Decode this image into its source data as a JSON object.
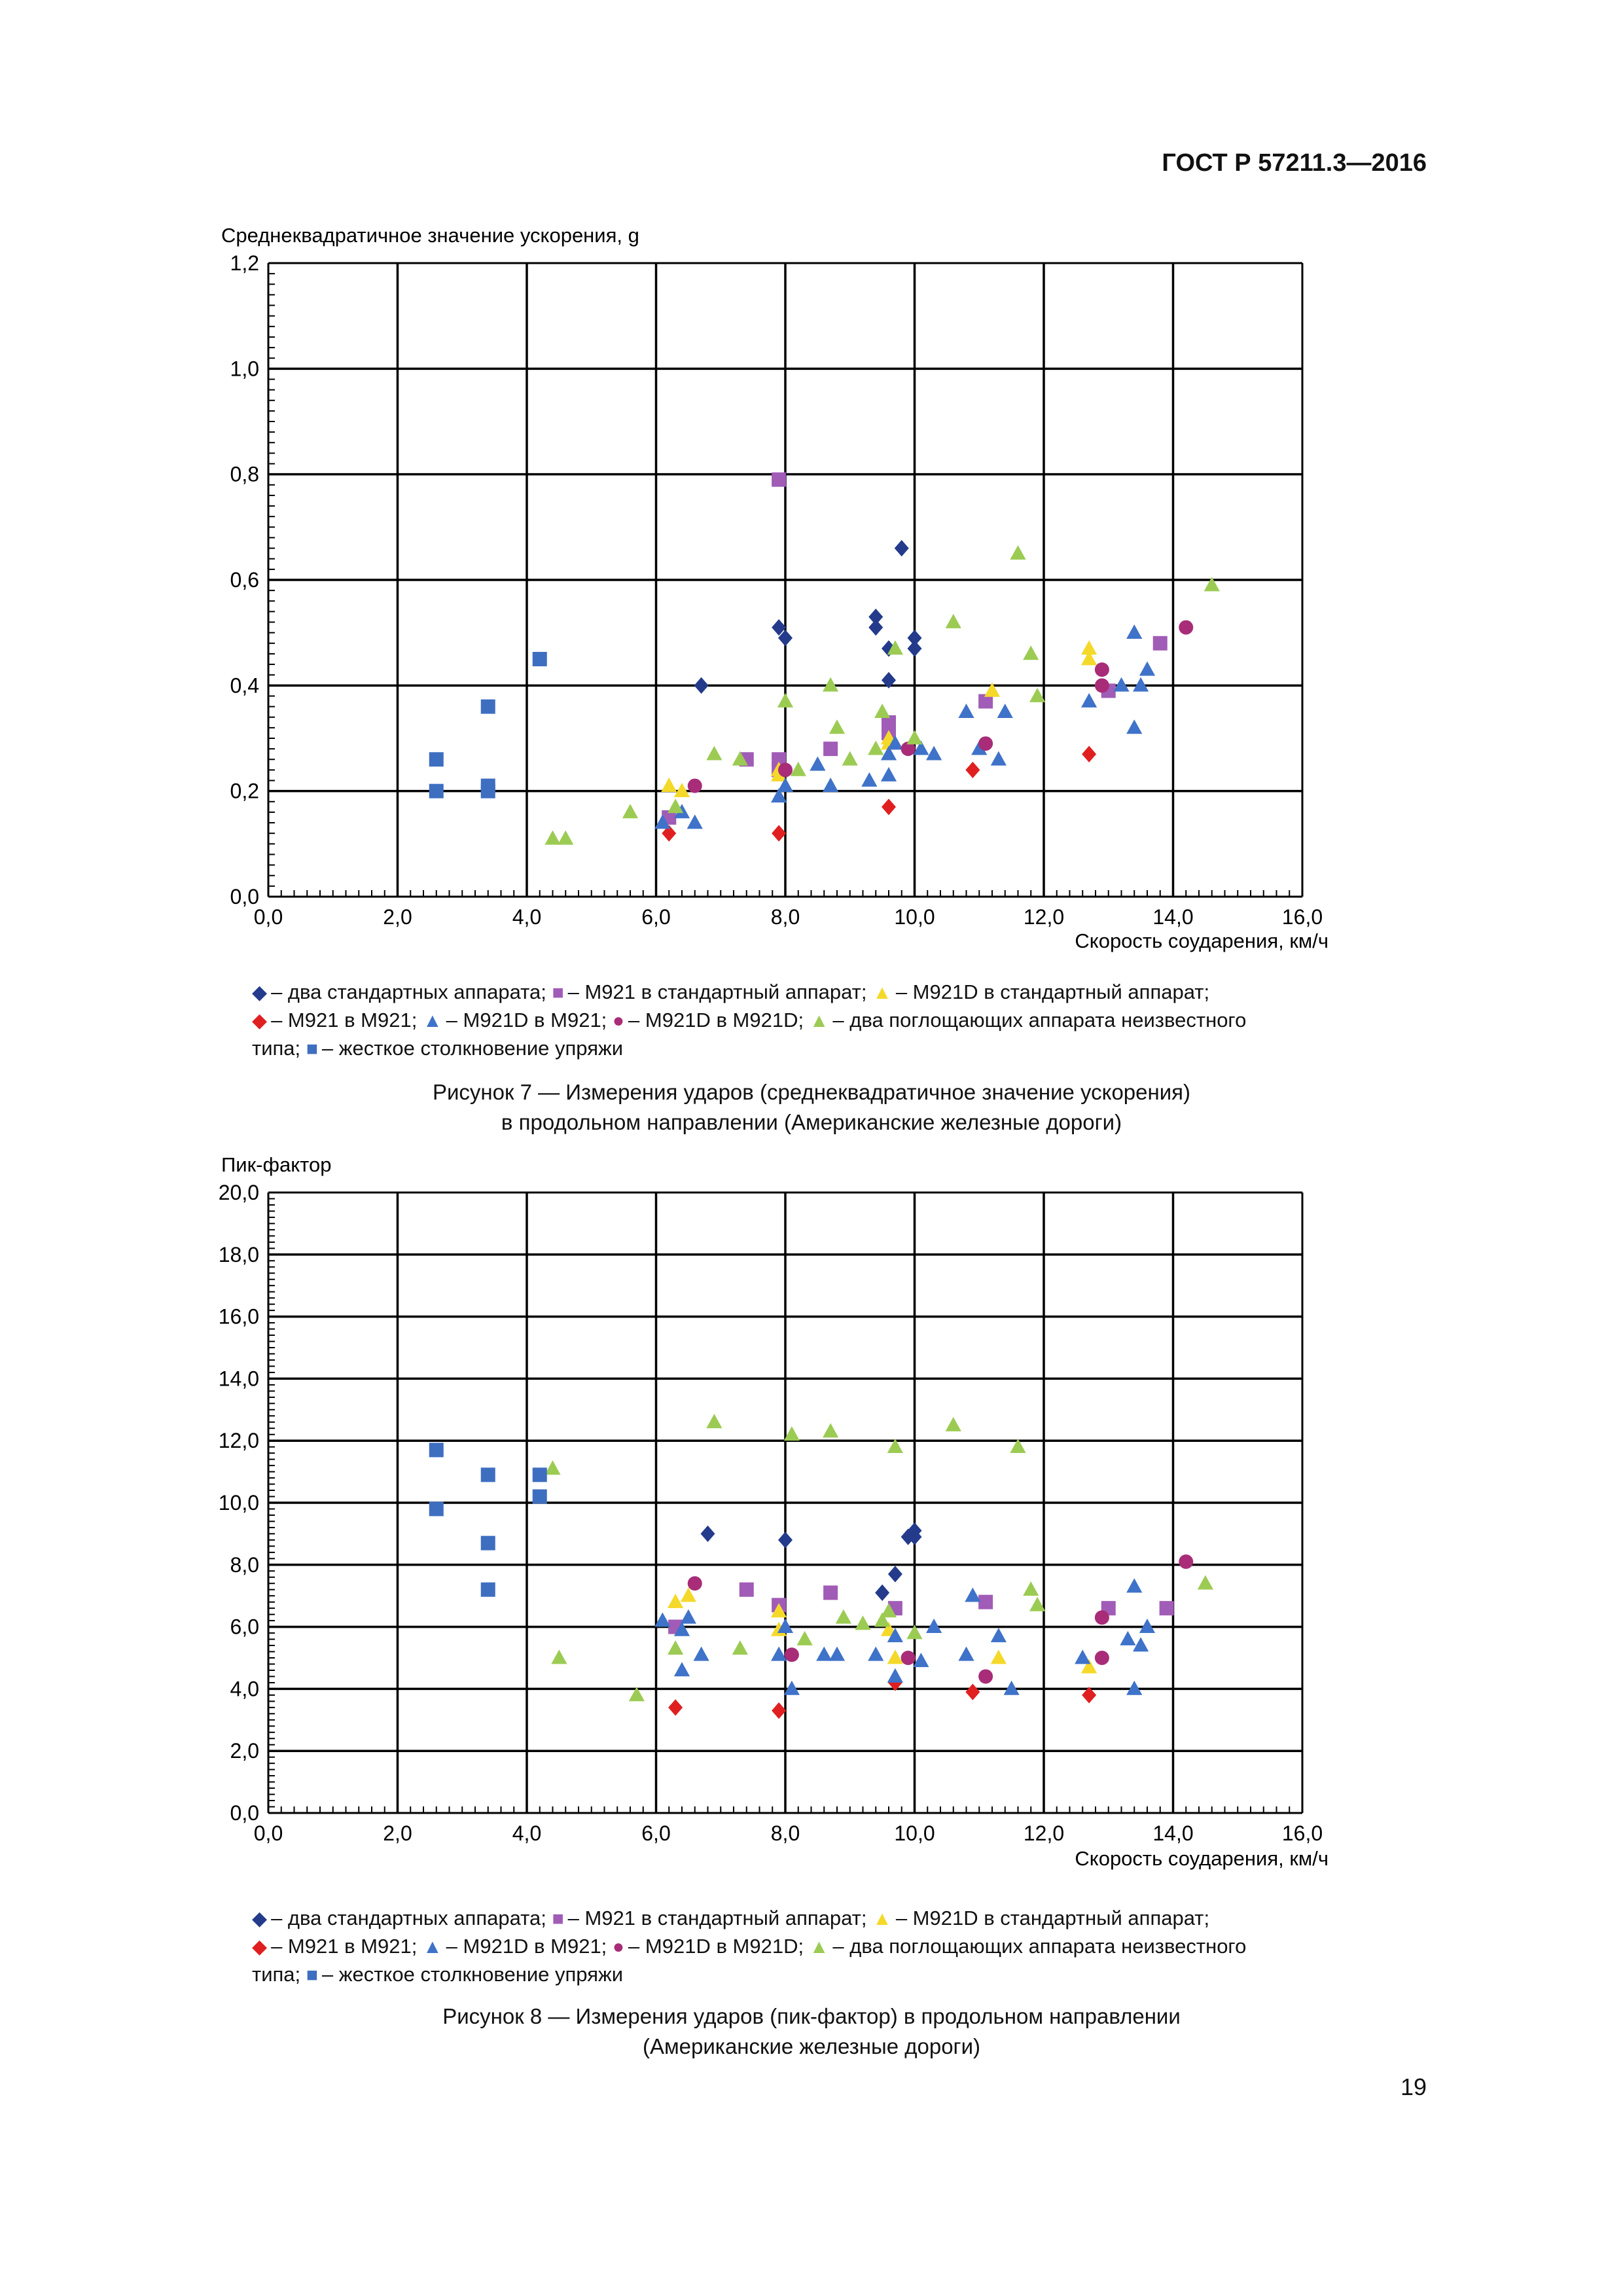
{
  "header": {
    "doc_code": "ГОСТ Р 57211.3—2016"
  },
  "page_number": "19",
  "series_styles": {
    "two_std": {
      "color": "#243b8c",
      "shape": "diamond"
    },
    "m921_std": {
      "color": "#a05cb6",
      "shape": "square"
    },
    "m921d_std": {
      "color": "#f5d92a",
      "shape": "triangle"
    },
    "m921_m921": {
      "color": "#e02020",
      "shape": "diamond"
    },
    "m921d_m921": {
      "color": "#3f72c9",
      "shape": "triangle"
    },
    "m921d_m921d": {
      "color": "#a82c78",
      "shape": "circle"
    },
    "two_unknown": {
      "color": "#9ccb53",
      "shape": "triangle"
    },
    "rigid": {
      "color": "#3e6ec0",
      "shape": "square"
    }
  },
  "legend": {
    "line1": [
      {
        "key": "two_std",
        "text": "– два стандартных аппарата;"
      },
      {
        "key": "m921_std",
        "text": "– М921 в стандартный аппарат;"
      },
      {
        "key": "m921d_std",
        "text": "– М921D в стандартный аппарат;"
      }
    ],
    "line2": [
      {
        "key": "m921_m921",
        "text": "– М921 в М921;"
      },
      {
        "key": "m921d_m921",
        "text": "– М921D в М921;"
      },
      {
        "key": "m921d_m921d",
        "text": "– М921D в М921D;"
      },
      {
        "key": "two_unknown",
        "text": "– два поглощающих аппарата неизвестного"
      }
    ],
    "line3_prefix": "типа;",
    "line3": [
      {
        "key": "rigid",
        "text": "– жесткое столкновение упряжи"
      }
    ]
  },
  "captions": {
    "fig7_line1": "Рисунок 7 — Измерения ударов (среднеквадратичное значение ускорения)",
    "fig7_line2": "в продольном направлении (Американские железные дороги)",
    "fig8_line1": "Рисунок 8 — Измерения ударов (пик-фактор) в продольном направлении",
    "fig8_line2": "(Американские железные дороги)"
  },
  "chart_data": [
    {
      "type": "scatter",
      "title": "",
      "ylabel": "Среднеквадратичное значение ускорения, g",
      "xlabel": "Скорость соударения, км/ч",
      "xlim": [
        0,
        16
      ],
      "ylim": [
        0,
        1.2
      ],
      "x_ticks": [
        "0,0",
        "2,0",
        "4,0",
        "6,0",
        "8,0",
        "10,0",
        "12,0",
        "14,0",
        "16,0"
      ],
      "y_ticks": [
        "0,0",
        "0,2",
        "0,4",
        "0,6",
        "0,8",
        "1,0",
        "1,2"
      ],
      "grid": true,
      "legend_position": "bottom",
      "series": [
        {
          "key": "two_std",
          "points": [
            [
              6.7,
              0.4
            ],
            [
              7.9,
              0.51
            ],
            [
              8.0,
              0.49
            ],
            [
              9.4,
              0.53
            ],
            [
              9.4,
              0.51
            ],
            [
              9.6,
              0.47
            ],
            [
              9.6,
              0.41
            ],
            [
              9.8,
              0.66
            ],
            [
              10.0,
              0.49
            ],
            [
              10.0,
              0.47
            ]
          ]
        },
        {
          "key": "m921_std",
          "points": [
            [
              6.2,
              0.15
            ],
            [
              7.4,
              0.26
            ],
            [
              7.9,
              0.79
            ],
            [
              7.9,
              0.26
            ],
            [
              7.9,
              0.24
            ],
            [
              8.7,
              0.28
            ],
            [
              9.6,
              0.33
            ],
            [
              9.6,
              0.31
            ],
            [
              11.1,
              0.37
            ],
            [
              13.0,
              0.39
            ],
            [
              13.8,
              0.48
            ]
          ]
        },
        {
          "key": "m921d_std",
          "points": [
            [
              6.2,
              0.21
            ],
            [
              6.4,
              0.2
            ],
            [
              7.9,
              0.23
            ],
            [
              7.9,
              0.24
            ],
            [
              9.6,
              0.29
            ],
            [
              9.6,
              0.3
            ],
            [
              11.2,
              0.39
            ],
            [
              12.7,
              0.47
            ],
            [
              12.7,
              0.45
            ]
          ]
        },
        {
          "key": "m921_m921",
          "points": [
            [
              6.2,
              0.12
            ],
            [
              7.9,
              0.12
            ],
            [
              9.6,
              0.17
            ],
            [
              10.9,
              0.24
            ],
            [
              12.7,
              0.27
            ]
          ]
        },
        {
          "key": "m921d_m921",
          "points": [
            [
              6.1,
              0.14
            ],
            [
              6.4,
              0.16
            ],
            [
              6.6,
              0.14
            ],
            [
              7.9,
              0.19
            ],
            [
              8.0,
              0.21
            ],
            [
              8.5,
              0.25
            ],
            [
              8.7,
              0.21
            ],
            [
              9.3,
              0.22
            ],
            [
              9.6,
              0.27
            ],
            [
              9.6,
              0.23
            ],
            [
              9.7,
              0.29
            ],
            [
              10.1,
              0.28
            ],
            [
              10.3,
              0.27
            ],
            [
              10.8,
              0.35
            ],
            [
              11.0,
              0.28
            ],
            [
              11.3,
              0.26
            ],
            [
              11.4,
              0.35
            ],
            [
              12.7,
              0.37
            ],
            [
              13.2,
              0.4
            ],
            [
              13.4,
              0.5
            ],
            [
              13.4,
              0.32
            ],
            [
              13.5,
              0.4
            ],
            [
              13.6,
              0.43
            ]
          ]
        },
        {
          "key": "m921d_m921d",
          "points": [
            [
              6.6,
              0.21
            ],
            [
              8.0,
              0.24
            ],
            [
              9.9,
              0.28
            ],
            [
              11.1,
              0.29
            ],
            [
              12.9,
              0.4
            ],
            [
              12.9,
              0.43
            ],
            [
              14.2,
              0.51
            ]
          ]
        },
        {
          "key": "two_unknown",
          "points": [
            [
              4.4,
              0.11
            ],
            [
              4.6,
              0.11
            ],
            [
              5.6,
              0.16
            ],
            [
              6.3,
              0.17
            ],
            [
              6.9,
              0.27
            ],
            [
              7.3,
              0.26
            ],
            [
              8.0,
              0.37
            ],
            [
              8.2,
              0.24
            ],
            [
              8.7,
              0.4
            ],
            [
              8.8,
              0.32
            ],
            [
              9.0,
              0.26
            ],
            [
              9.4,
              0.28
            ],
            [
              9.5,
              0.35
            ],
            [
              9.7,
              0.47
            ],
            [
              10.0,
              0.3
            ],
            [
              10.6,
              0.52
            ],
            [
              11.6,
              0.65
            ],
            [
              11.8,
              0.46
            ],
            [
              11.9,
              0.38
            ],
            [
              14.6,
              0.59
            ]
          ]
        },
        {
          "key": "rigid",
          "points": [
            [
              2.6,
              0.26
            ],
            [
              2.6,
              0.2
            ],
            [
              3.4,
              0.36
            ],
            [
              3.4,
              0.21
            ],
            [
              3.4,
              0.2
            ],
            [
              4.2,
              0.45
            ]
          ]
        }
      ]
    },
    {
      "type": "scatter",
      "title": "",
      "ylabel": "Пик-фактор",
      "xlabel": "Скорость соударения, км/ч",
      "xlim": [
        0,
        16
      ],
      "ylim": [
        0,
        20
      ],
      "x_ticks": [
        "0,0",
        "2,0",
        "4,0",
        "6,0",
        "8,0",
        "10,0",
        "12,0",
        "14,0",
        "16,0"
      ],
      "y_ticks": [
        "0,0",
        "2,0",
        "4,0",
        "6,0",
        "8,0",
        "10,0",
        "12,0",
        "14,0",
        "16,0",
        "18,0",
        "20,0"
      ],
      "grid": true,
      "legend_position": "bottom",
      "series": [
        {
          "key": "two_std",
          "points": [
            [
              6.8,
              9.0
            ],
            [
              8.0,
              8.8
            ],
            [
              9.5,
              7.1
            ],
            [
              9.7,
              7.7
            ],
            [
              9.9,
              8.9
            ],
            [
              10.0,
              9.1
            ],
            [
              10.0,
              8.9
            ]
          ]
        },
        {
          "key": "m921_std",
          "points": [
            [
              6.3,
              6.0
            ],
            [
              7.4,
              7.2
            ],
            [
              7.9,
              6.7
            ],
            [
              8.7,
              7.1
            ],
            [
              9.7,
              6.6
            ],
            [
              11.1,
              6.8
            ],
            [
              13.0,
              6.6
            ],
            [
              13.9,
              6.6
            ]
          ]
        },
        {
          "key": "m921d_std",
          "points": [
            [
              6.3,
              6.8
            ],
            [
              6.5,
              7.0
            ],
            [
              7.9,
              6.5
            ],
            [
              7.9,
              5.9
            ],
            [
              9.6,
              5.9
            ],
            [
              9.7,
              5.0
            ],
            [
              11.3,
              5.0
            ],
            [
              12.7,
              4.7
            ]
          ]
        },
        {
          "key": "m921_m921",
          "points": [
            [
              6.3,
              3.4
            ],
            [
              7.9,
              3.3
            ],
            [
              9.7,
              4.2
            ],
            [
              10.9,
              3.9
            ],
            [
              12.7,
              3.8
            ]
          ]
        },
        {
          "key": "m921d_m921",
          "points": [
            [
              6.1,
              6.2
            ],
            [
              6.4,
              5.9
            ],
            [
              6.4,
              4.6
            ],
            [
              6.5,
              6.3
            ],
            [
              6.7,
              5.1
            ],
            [
              7.9,
              5.1
            ],
            [
              8.0,
              6.0
            ],
            [
              8.1,
              4.0
            ],
            [
              8.6,
              5.1
            ],
            [
              8.8,
              5.1
            ],
            [
              9.4,
              5.1
            ],
            [
              9.7,
              5.7
            ],
            [
              9.7,
              4.4
            ],
            [
              10.1,
              4.9
            ],
            [
              10.3,
              6.0
            ],
            [
              10.8,
              5.1
            ],
            [
              10.9,
              7.0
            ],
            [
              11.3,
              5.7
            ],
            [
              11.5,
              4.0
            ],
            [
              12.6,
              5.0
            ],
            [
              13.3,
              5.6
            ],
            [
              13.4,
              7.3
            ],
            [
              13.4,
              4.0
            ],
            [
              13.5,
              5.4
            ],
            [
              13.6,
              6.0
            ]
          ]
        },
        {
          "key": "m921d_m921d",
          "points": [
            [
              6.6,
              7.4
            ],
            [
              8.1,
              5.1
            ],
            [
              9.9,
              5.0
            ],
            [
              11.1,
              4.4
            ],
            [
              12.9,
              6.3
            ],
            [
              12.9,
              5.0
            ],
            [
              14.2,
              8.1
            ]
          ]
        },
        {
          "key": "two_unknown",
          "points": [
            [
              4.4,
              11.1
            ],
            [
              4.5,
              5.0
            ],
            [
              5.7,
              3.8
            ],
            [
              6.3,
              5.3
            ],
            [
              6.9,
              12.6
            ],
            [
              7.3,
              5.3
            ],
            [
              8.1,
              12.2
            ],
            [
              8.3,
              5.6
            ],
            [
              8.7,
              12.3
            ],
            [
              8.9,
              6.3
            ],
            [
              9.2,
              6.1
            ],
            [
              9.5,
              6.2
            ],
            [
              9.6,
              6.5
            ],
            [
              9.7,
              11.8
            ],
            [
              10.0,
              5.8
            ],
            [
              10.6,
              12.5
            ],
            [
              11.6,
              11.8
            ],
            [
              11.8,
              7.2
            ],
            [
              11.9,
              6.7
            ],
            [
              14.5,
              7.4
            ]
          ]
        },
        {
          "key": "rigid",
          "points": [
            [
              2.6,
              11.7
            ],
            [
              2.6,
              9.8
            ],
            [
              3.4,
              10.9
            ],
            [
              3.4,
              8.7
            ],
            [
              3.4,
              7.2
            ],
            [
              4.2,
              10.9
            ],
            [
              4.2,
              10.2
            ]
          ]
        }
      ]
    }
  ]
}
